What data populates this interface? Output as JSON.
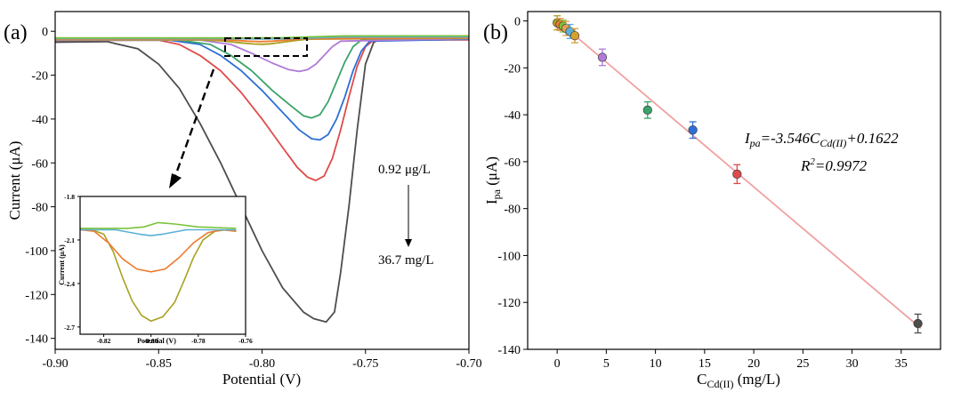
{
  "panels": {
    "a": {
      "label": "(a)",
      "chart_data": {
        "type": "line",
        "xlabel": "Potential (V)",
        "ylabel": "Current (μA)",
        "xlim": [
          -0.9,
          -0.7
        ],
        "ylim": [
          -145,
          9
        ],
        "xticks": [
          -0.9,
          -0.85,
          -0.8,
          -0.75,
          -0.7
        ],
        "xtick_labels": [
          "-0.90",
          "-0.85",
          "-0.80",
          "-0.75",
          "-0.70"
        ],
        "yticks": [
          0,
          -20,
          -40,
          -60,
          -80,
          -100,
          -120,
          -140
        ],
        "ytick_labels": [
          "0",
          "-20",
          "-40",
          "-60",
          "-80",
          "-100",
          "-120",
          "-140"
        ],
        "series": [
          {
            "color": "#4d4d4d",
            "points": [
              [
                -0.9,
                -5
              ],
              [
                -0.875,
                -4.7
              ],
              [
                -0.86,
                -8
              ],
              [
                -0.85,
                -15
              ],
              [
                -0.84,
                -26
              ],
              [
                -0.83,
                -42
              ],
              [
                -0.82,
                -60
              ],
              [
                -0.81,
                -80
              ],
              [
                -0.8,
                -100
              ],
              [
                -0.79,
                -117
              ],
              [
                -0.78,
                -128
              ],
              [
                -0.775,
                -131
              ],
              [
                -0.769,
                -132.5
              ],
              [
                -0.765,
                -128
              ],
              [
                -0.762,
                -110
              ],
              [
                -0.758,
                -80
              ],
              [
                -0.754,
                -45
              ],
              [
                -0.75,
                -15
              ],
              [
                -0.746,
                -5
              ],
              [
                -0.743,
                -3.8
              ],
              [
                -0.7,
                -3.8
              ]
            ]
          },
          {
            "color": "#e04a4a",
            "points": [
              [
                -0.9,
                -4.2
              ],
              [
                -0.85,
                -4
              ],
              [
                -0.84,
                -6
              ],
              [
                -0.83,
                -11
              ],
              [
                -0.82,
                -18
              ],
              [
                -0.81,
                -28
              ],
              [
                -0.8,
                -40
              ],
              [
                -0.79,
                -53
              ],
              [
                -0.783,
                -62
              ],
              [
                -0.778,
                -66.5
              ],
              [
                -0.774,
                -68
              ],
              [
                -0.77,
                -66
              ],
              [
                -0.766,
                -58
              ],
              [
                -0.762,
                -45
              ],
              [
                -0.758,
                -30
              ],
              [
                -0.754,
                -16
              ],
              [
                -0.75,
                -7
              ],
              [
                -0.746,
                -4
              ],
              [
                -0.7,
                -3.9
              ]
            ]
          },
          {
            "color": "#2d6fd6",
            "points": [
              [
                -0.9,
                -4.1
              ],
              [
                -0.845,
                -4
              ],
              [
                -0.83,
                -6
              ],
              [
                -0.82,
                -11
              ],
              [
                -0.81,
                -18
              ],
              [
                -0.8,
                -27
              ],
              [
                -0.79,
                -37
              ],
              [
                -0.782,
                -45
              ],
              [
                -0.776,
                -49
              ],
              [
                -0.772,
                -49.5
              ],
              [
                -0.768,
                -47
              ],
              [
                -0.764,
                -40
              ],
              [
                -0.76,
                -30
              ],
              [
                -0.756,
                -18
              ],
              [
                -0.752,
                -9
              ],
              [
                -0.748,
                -4.5
              ],
              [
                -0.7,
                -3.6
              ]
            ]
          },
          {
            "color": "#3aa36a",
            "points": [
              [
                -0.9,
                -4
              ],
              [
                -0.84,
                -4
              ],
              [
                -0.825,
                -6
              ],
              [
                -0.815,
                -11
              ],
              [
                -0.805,
                -18
              ],
              [
                -0.795,
                -27
              ],
              [
                -0.786,
                -34
              ],
              [
                -0.78,
                -38.5
              ],
              [
                -0.776,
                -39.5
              ],
              [
                -0.772,
                -38
              ],
              [
                -0.768,
                -32
              ],
              [
                -0.764,
                -23
              ],
              [
                -0.76,
                -14
              ],
              [
                -0.756,
                -7
              ],
              [
                -0.752,
                -4
              ],
              [
                -0.7,
                -3.4
              ]
            ]
          },
          {
            "color": "#b07ad8",
            "points": [
              [
                -0.9,
                -4
              ],
              [
                -0.83,
                -4
              ],
              [
                -0.815,
                -6
              ],
              [
                -0.805,
                -10
              ],
              [
                -0.795,
                -14.5
              ],
              [
                -0.787,
                -17.5
              ],
              [
                -0.782,
                -18.3
              ],
              [
                -0.778,
                -17.5
              ],
              [
                -0.774,
                -15
              ],
              [
                -0.77,
                -11
              ],
              [
                -0.766,
                -7
              ],
              [
                -0.762,
                -4.5
              ],
              [
                -0.7,
                -3.3
              ]
            ]
          },
          {
            "color": "#a8a020",
            "points": [
              [
                -0.9,
                -3.8
              ],
              [
                -0.83,
                -3.9
              ],
              [
                -0.82,
                -4.3
              ],
              [
                -0.81,
                -5.3
              ],
              [
                -0.804,
                -5.8
              ],
              [
                -0.8,
                -5.9
              ],
              [
                -0.796,
                -5.7
              ],
              [
                -0.79,
                -5
              ],
              [
                -0.784,
                -4.2
              ],
              [
                -0.778,
                -3.6
              ],
              [
                -0.7,
                -3.1
              ]
            ]
          },
          {
            "color": "#f07a2e",
            "points": [
              [
                -0.9,
                -3.6
              ],
              [
                -0.825,
                -3.6
              ],
              [
                -0.815,
                -4
              ],
              [
                -0.807,
                -4.5
              ],
              [
                -0.801,
                -4.7
              ],
              [
                -0.795,
                -4.5
              ],
              [
                -0.788,
                -4
              ],
              [
                -0.78,
                -3.4
              ],
              [
                -0.7,
                -2.9
              ]
            ]
          },
          {
            "color": "#5ab0d6",
            "points": [
              [
                -0.9,
                -3.3
              ],
              [
                -0.82,
                -3.3
              ],
              [
                -0.81,
                -3.4
              ],
              [
                -0.8,
                -3.5
              ],
              [
                -0.79,
                -3.4
              ],
              [
                -0.78,
                -3.1
              ],
              [
                -0.76,
                -2.6
              ],
              [
                -0.7,
                -2.5
              ]
            ]
          },
          {
            "color": "#7ac23c",
            "points": [
              [
                -0.9,
                -3
              ],
              [
                -0.82,
                -3
              ],
              [
                -0.805,
                -3
              ],
              [
                -0.79,
                -2.9
              ],
              [
                -0.775,
                -2.5
              ],
              [
                -0.76,
                -2.1
              ],
              [
                -0.7,
                -2.1
              ]
            ]
          }
        ]
      },
      "annotations": {
        "top": "0.92 μg/L",
        "bottom": "36.7 mg/L"
      },
      "inset": {
        "chart_data": {
          "type": "line",
          "xlabel": "Potential (V)",
          "ylabel": "Current (μA)",
          "xlim": [
            -0.83,
            -0.76
          ],
          "ylim": [
            -2.75,
            -1.8
          ],
          "xticks": [
            -0.82,
            -0.8,
            -0.78,
            -0.76
          ],
          "xtick_labels": [
            "-0.82",
            "-0.80",
            "-0.78",
            "-0.76"
          ],
          "yticks": [
            -1.8,
            -2.1,
            -2.4,
            -2.7
          ],
          "ytick_labels": [
            "-1.8",
            "-2.1",
            "-2.4",
            "-2.7"
          ],
          "series": [
            {
              "color": "#a8a020",
              "points": [
                [
                  -0.83,
                  -2.03
                ],
                [
                  -0.825,
                  -2.03
                ],
                [
                  -0.82,
                  -2.06
                ],
                [
                  -0.816,
                  -2.18
                ],
                [
                  -0.812,
                  -2.36
                ],
                [
                  -0.808,
                  -2.52
                ],
                [
                  -0.804,
                  -2.62
                ],
                [
                  -0.8,
                  -2.66
                ],
                [
                  -0.795,
                  -2.63
                ],
                [
                  -0.79,
                  -2.53
                ],
                [
                  -0.786,
                  -2.38
                ],
                [
                  -0.782,
                  -2.22
                ],
                [
                  -0.778,
                  -2.1
                ],
                [
                  -0.773,
                  -2.04
                ],
                [
                  -0.768,
                  -2.03
                ],
                [
                  -0.764,
                  -2.04
                ]
              ]
            },
            {
              "color": "#f07a2e",
              "points": [
                [
                  -0.83,
                  -2.03
                ],
                [
                  -0.824,
                  -2.04
                ],
                [
                  -0.818,
                  -2.12
                ],
                [
                  -0.812,
                  -2.23
                ],
                [
                  -0.806,
                  -2.3
                ],
                [
                  -0.8,
                  -2.32
                ],
                [
                  -0.794,
                  -2.3
                ],
                [
                  -0.788,
                  -2.22
                ],
                [
                  -0.782,
                  -2.12
                ],
                [
                  -0.776,
                  -2.05
                ],
                [
                  -0.77,
                  -2.03
                ],
                [
                  -0.764,
                  -2.04
                ]
              ]
            },
            {
              "color": "#5ab0d6",
              "points": [
                [
                  -0.83,
                  -2.03
                ],
                [
                  -0.815,
                  -2.03
                ],
                [
                  -0.805,
                  -2.06
                ],
                [
                  -0.8,
                  -2.07
                ],
                [
                  -0.795,
                  -2.06
                ],
                [
                  -0.785,
                  -2.03
                ],
                [
                  -0.764,
                  -2.03
                ]
              ]
            },
            {
              "color": "#7ac23c",
              "points": [
                [
                  -0.83,
                  -2.02
                ],
                [
                  -0.81,
                  -2.02
                ],
                [
                  -0.803,
                  -2.01
                ],
                [
                  -0.797,
                  -1.98
                ],
                [
                  -0.79,
                  -1.99
                ],
                [
                  -0.78,
                  -2.01
                ],
                [
                  -0.764,
                  -2.02
                ]
              ]
            }
          ]
        }
      }
    },
    "b": {
      "label": "(b)",
      "chart_data": {
        "type": "scatter",
        "xlabel_main": "C",
        "xlabel_sub": "Cd(II)",
        "xlabel_unit": " (mg/L)",
        "ylabel_main": "I",
        "ylabel_sub": "pa",
        "ylabel_unit": " (μA)",
        "xlim": [
          -3,
          39
        ],
        "ylim": [
          -140,
          4
        ],
        "xticks": [
          0,
          5,
          10,
          15,
          20,
          25,
          30,
          35
        ],
        "xtick_labels": [
          "0",
          "5",
          "10",
          "15",
          "20",
          "25",
          "30",
          "35"
        ],
        "yticks": [
          0,
          -20,
          -40,
          -60,
          -80,
          -100,
          -120,
          -140
        ],
        "ytick_labels": [
          "0",
          "-20",
          "-40",
          "-60",
          "-80",
          "-100",
          "-120",
          "-140"
        ],
        "points": [
          {
            "x": 0.0,
            "y": -0.8,
            "err": 3,
            "color": "#a8a020"
          },
          {
            "x": 0.3,
            "y": -1.5,
            "err": 2.5,
            "color": "#f07a2e"
          },
          {
            "x": 0.6,
            "y": -2.2,
            "err": 2.5,
            "color": "#7ac23c"
          },
          {
            "x": 0.9,
            "y": -3.2,
            "err": 3,
            "color": "#e8a050"
          },
          {
            "x": 1.3,
            "y": -4.5,
            "err": 3,
            "color": "#5ab0d6"
          },
          {
            "x": 1.8,
            "y": -6.3,
            "err": 3,
            "color": "#d6a030"
          },
          {
            "x": 4.6,
            "y": -15.5,
            "err": 3.5,
            "color": "#b07ad8"
          },
          {
            "x": 9.2,
            "y": -38,
            "err": 3.5,
            "color": "#3aa36a"
          },
          {
            "x": 13.8,
            "y": -46.5,
            "err": 3.5,
            "color": "#2d6fd6"
          },
          {
            "x": 18.3,
            "y": -65.3,
            "err": 4,
            "color": "#e04a4a"
          },
          {
            "x": 36.7,
            "y": -129,
            "err": 4,
            "color": "#4d4d4d"
          }
        ],
        "fit": {
          "slope": -3.546,
          "intercept": 0.1622,
          "x_range": [
            0,
            37
          ],
          "color": "#f0a0a0"
        },
        "equation": {
          "lhs_main": "I",
          "lhs_sub": "pa",
          "rhs_main": "=-3.546C",
          "rhs_sub": "Cd(II)",
          "rhs_tail": "+0.1622"
        },
        "r2": {
          "main": "R",
          "sup": "2",
          "tail": "=0.9972"
        }
      }
    }
  }
}
